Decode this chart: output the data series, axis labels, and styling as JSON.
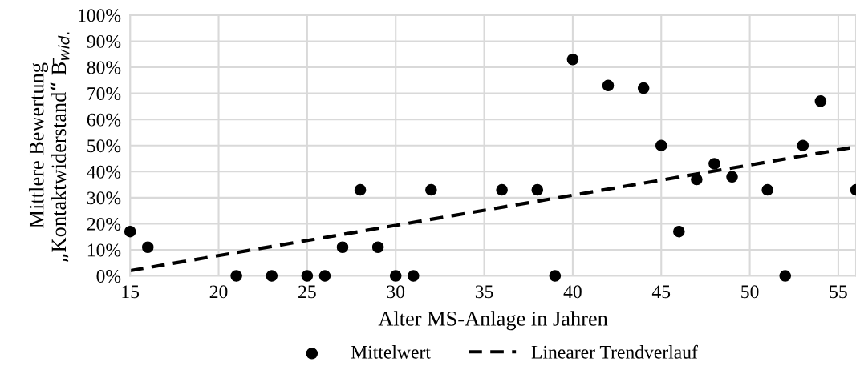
{
  "chart_data": {
    "type": "scatter",
    "xlabel": "Alter MS-Anlage in Jahren",
    "ylabel": "Mittlere Bewertung\n„Kontaktwiderstand“ B̄$_{wid.}$",
    "xlim": [
      15,
      56
    ],
    "xticks": [
      15,
      20,
      25,
      30,
      35,
      40,
      45,
      50,
      55
    ],
    "ylim": [
      0,
      100
    ],
    "yticks": [
      {
        "value": 0,
        "label": "0%"
      },
      {
        "value": 10,
        "label": "10%"
      },
      {
        "value": 20,
        "label": "20%"
      },
      {
        "value": 30,
        "label": "30%"
      },
      {
        "value": 40,
        "label": "40%"
      },
      {
        "value": 50,
        "label": "50%"
      },
      {
        "value": 60,
        "label": "60%"
      },
      {
        "value": 70,
        "label": "70%"
      },
      {
        "value": 80,
        "label": "80%"
      },
      {
        "value": 90,
        "label": "90%"
      },
      {
        "value": 100,
        "label": "100%"
      }
    ],
    "grid": true,
    "legend": "bottom",
    "series": [
      {
        "name": "Mittelwert",
        "color": "#000000",
        "marker": "circle",
        "x": [
          15,
          16,
          21,
          23,
          25,
          26,
          27,
          28,
          29,
          30,
          31,
          32,
          36,
          38,
          39,
          40,
          42,
          44,
          45,
          46,
          47,
          48,
          49,
          51,
          52,
          53,
          54,
          56
        ],
        "values": [
          17,
          11,
          0,
          0,
          0,
          0,
          11,
          33,
          11,
          0,
          0,
          33,
          33,
          33,
          0,
          83,
          73,
          72,
          50,
          17,
          37,
          43,
          38,
          33,
          0,
          50,
          67,
          33
        ]
      },
      {
        "name": "Linearer Trendverlauf",
        "type": "line",
        "color": "#000000",
        "line_style": "dashed",
        "x": [
          15,
          56
        ],
        "values": [
          2,
          49.5
        ]
      }
    ]
  }
}
